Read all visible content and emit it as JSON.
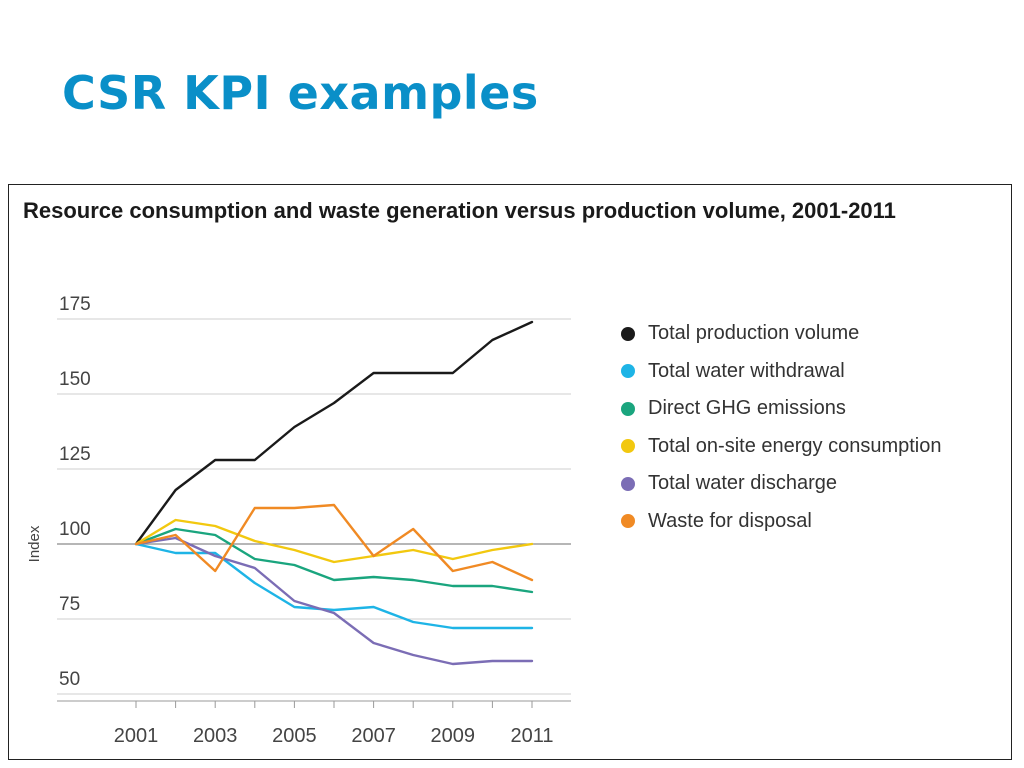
{
  "page": {
    "title": "CSR KPI examples",
    "title_color": "#0a8fc8"
  },
  "chart_data": {
    "type": "line",
    "title": "Resource consumption and waste generation versus production volume, 2001-2011",
    "xlabel": "",
    "ylabel": "Index",
    "x": [
      2001,
      2002,
      2003,
      2004,
      2005,
      2006,
      2007,
      2008,
      2009,
      2010,
      2011
    ],
    "x_ticks": [
      "2001",
      "2003",
      "2005",
      "2007",
      "2009",
      "2011"
    ],
    "y_ticks": [
      50,
      75,
      100,
      125,
      150,
      175
    ],
    "ylim": [
      50,
      175
    ],
    "xlim": [
      2001,
      2011
    ],
    "grid": "horizontal",
    "baseline": 100,
    "legend_position": "right",
    "series": [
      {
        "name": "Total production volume",
        "color": "#1a1a1a",
        "values": [
          100,
          118,
          128,
          128,
          139,
          147,
          157,
          157,
          157,
          168,
          174
        ]
      },
      {
        "name": "Total water withdrawal",
        "color": "#1eb4e6",
        "values": [
          100,
          97,
          97,
          87,
          79,
          78,
          79,
          74,
          72,
          72,
          72
        ]
      },
      {
        "name": "Direct GHG emissions",
        "color": "#1aa57e",
        "values": [
          100,
          105,
          103,
          95,
          93,
          88,
          89,
          88,
          86,
          86,
          84
        ]
      },
      {
        "name": "Total on-site energy consumption",
        "color": "#f2c80f",
        "values": [
          100,
          108,
          106,
          101,
          98,
          94,
          96,
          98,
          95,
          98,
          100
        ]
      },
      {
        "name": "Total water discharge",
        "color": "#7b6db5",
        "values": [
          100,
          102,
          96,
          92,
          81,
          77,
          67,
          63,
          60,
          61,
          61
        ]
      },
      {
        "name": "Waste for disposal",
        "color": "#f08a24",
        "values": [
          100,
          103,
          91,
          112,
          112,
          113,
          96,
          105,
          91,
          94,
          88
        ]
      }
    ]
  }
}
